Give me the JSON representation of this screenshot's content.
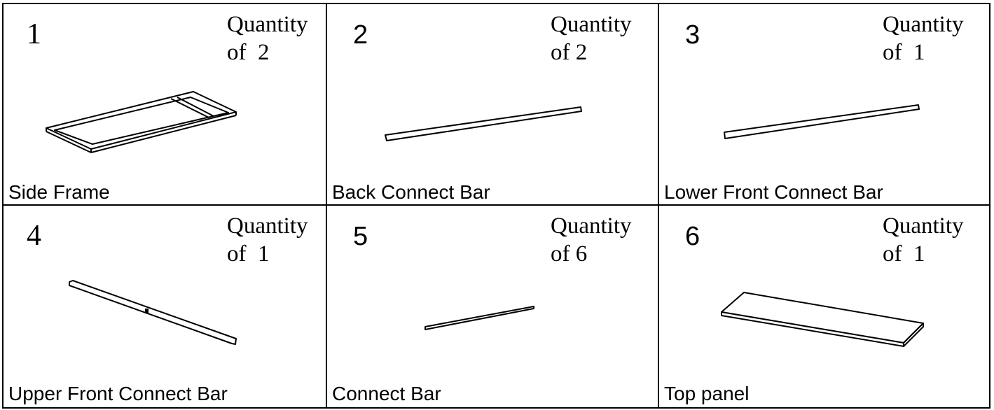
{
  "parts": [
    {
      "number": "1",
      "quantity_label": "Quantity",
      "quantity": "of  2",
      "name": "Side Frame"
    },
    {
      "number": "2",
      "quantity_label": "Quantity",
      "quantity": "of 2",
      "name": "Back Connect Bar"
    },
    {
      "number": "3",
      "quantity_label": "Quantity",
      "quantity": "of  1",
      "name": "Lower Front Connect Bar"
    },
    {
      "number": "4",
      "quantity_label": "Quantity",
      "quantity": "of  1",
      "name": "Upper Front Connect Bar"
    },
    {
      "number": "5",
      "quantity_label": "Quantity",
      "quantity": "of 6",
      "name": "Connect Bar"
    },
    {
      "number": "6",
      "quantity_label": "Quantity",
      "quantity": "of  1",
      "name": "Top panel"
    }
  ]
}
